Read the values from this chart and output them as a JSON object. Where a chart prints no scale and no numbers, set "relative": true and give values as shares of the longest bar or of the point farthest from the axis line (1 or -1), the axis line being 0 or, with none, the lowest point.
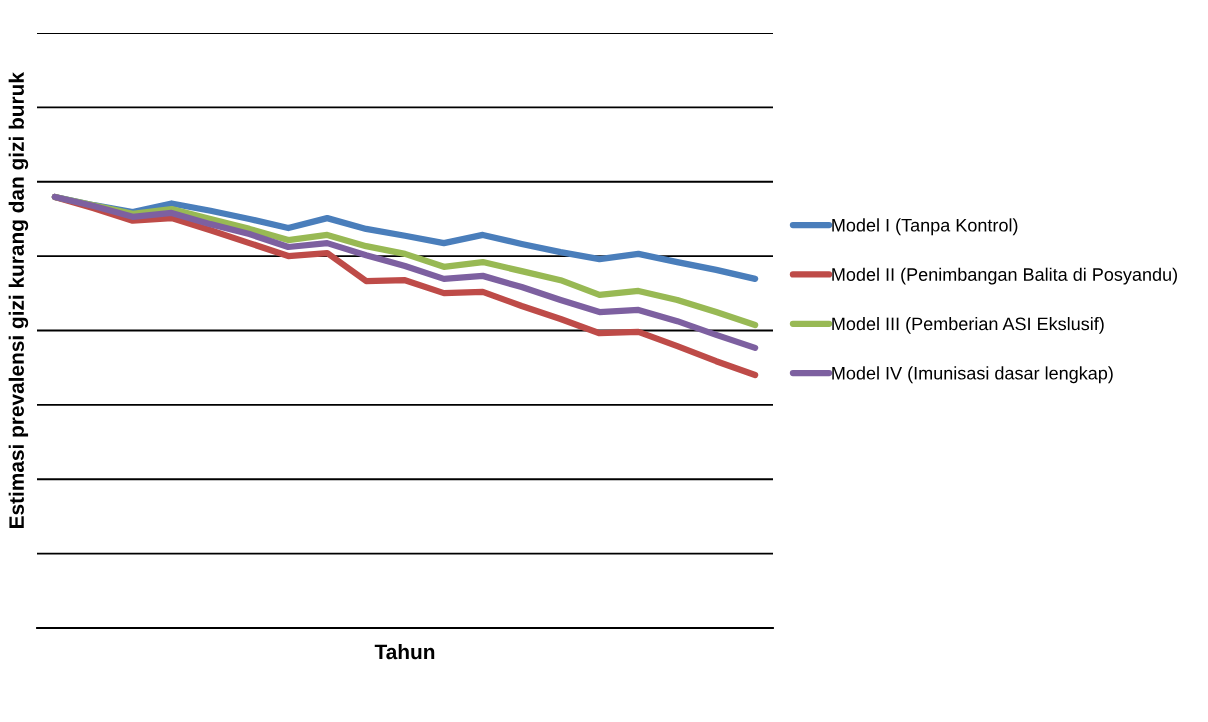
{
  "chart_data": {
    "type": "line",
    "relative": true,
    "xlabel": "Tahun",
    "ylabel": "Estimasi prevalensi gizi kurang dan gizi buruk",
    "categories": [
      null,
      null,
      null,
      null,
      null,
      null,
      null,
      null,
      null,
      null,
      null,
      null,
      null,
      null,
      null,
      null,
      null,
      null,
      null
    ],
    "grid": "y",
    "legend": "right",
    "marker": "none",
    "line_style": "solid",
    "series": [
      {
        "name": "Model I (Tanpa Kontrol)",
        "color": "#4a7ebb",
        "values": [
          1.0,
          0.981,
          0.965,
          0.985,
          0.968,
          0.949,
          0.928,
          0.951,
          0.926,
          0.91,
          0.893,
          0.912,
          0.891,
          0.872,
          0.856,
          0.868,
          0.849,
          0.831,
          0.81
        ]
      },
      {
        "name": "Model II (Penimbangan Balita di Posyandu)",
        "color": "#be4b48",
        "values": [
          1.0,
          0.974,
          0.945,
          0.951,
          0.923,
          0.893,
          0.863,
          0.87,
          0.805,
          0.807,
          0.777,
          0.78,
          0.747,
          0.717,
          0.684,
          0.687,
          0.654,
          0.619,
          0.587
        ]
      },
      {
        "name": "Model III (Pemberian ASI Ekslusif)",
        "color": "#98b954",
        "values": [
          1.0,
          0.981,
          0.961,
          0.972,
          0.949,
          0.926,
          0.9,
          0.912,
          0.886,
          0.868,
          0.838,
          0.849,
          0.828,
          0.807,
          0.773,
          0.782,
          0.761,
          0.733,
          0.703
        ]
      },
      {
        "name": "Model IV (Imunisasi dasar lengkap)",
        "color": "#7d60a0",
        "values": [
          1.0,
          0.979,
          0.954,
          0.963,
          0.937,
          0.914,
          0.884,
          0.893,
          0.865,
          0.84,
          0.81,
          0.817,
          0.791,
          0.761,
          0.733,
          0.738,
          0.712,
          0.68,
          0.65
        ]
      }
    ]
  }
}
